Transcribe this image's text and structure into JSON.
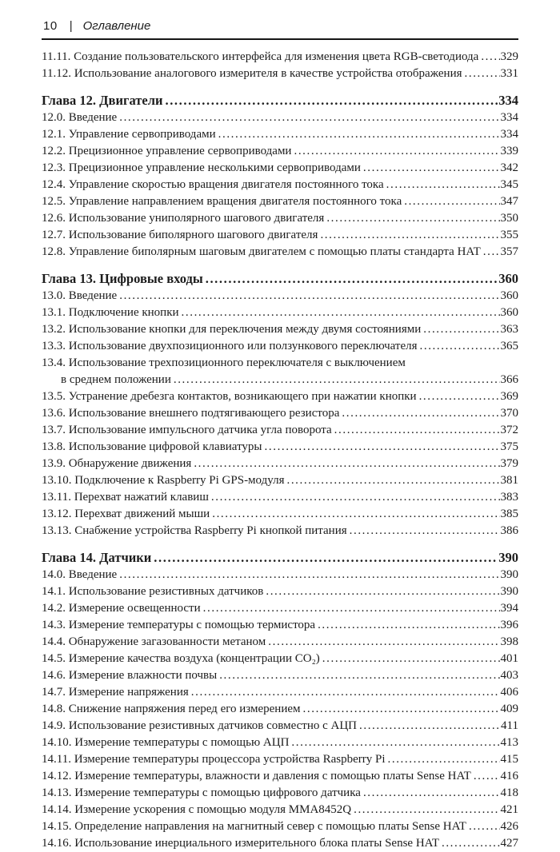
{
  "header": {
    "page_number": "10",
    "separator": "|",
    "title": "Оглавление"
  },
  "toc": {
    "sections": [
      {
        "entries": [
          {
            "label": "11.11. Создание пользовательского интерфейса для изменения цвета RGB-светодиода",
            "page": "329"
          },
          {
            "label": "11.12. Использование аналогового измерителя в качестве устройства отображения",
            "page": "331"
          }
        ]
      },
      {
        "heading": {
          "label": "Глава 12. Двигатели",
          "page": "334"
        },
        "entries": [
          {
            "label": "12.0. Введение",
            "page": "334"
          },
          {
            "label": "12.1. Управление сервоприводами",
            "page": "334"
          },
          {
            "label": "12.2. Прецизионное управление сервоприводами",
            "page": "339"
          },
          {
            "label": "12.3. Прецизионное управление несколькими сервоприводами",
            "page": "342"
          },
          {
            "label": "12.4. Управление скоростью вращения двигателя постоянного тока",
            "page": "345"
          },
          {
            "label": "12.5. Управление направлением вращения двигателя постоянного тока",
            "page": "347"
          },
          {
            "label": "12.6. Использование униполярного шагового двигателя",
            "page": "350"
          },
          {
            "label": "12.7. Использование биполярного шагового двигателя",
            "page": "355"
          },
          {
            "label": "12.8. Управление биполярным шаговым двигателем с помощью платы стандарта HAT",
            "page": "357"
          }
        ]
      },
      {
        "heading": {
          "label": "Глава 13. Цифровые входы",
          "page": "360"
        },
        "entries": [
          {
            "label": "13.0. Введение",
            "page": "360"
          },
          {
            "label": "13.1. Подключение кнопки",
            "page": "360"
          },
          {
            "label": "13.2. Использование кнопки для переключения между двумя состояниями",
            "page": "363"
          },
          {
            "label": "13.3. Использование двухпозиционного или ползункового переключателя",
            "page": "365"
          },
          {
            "label": "13.4. Использование трехпозиционного переключателя с выключением",
            "cont": "в среднем положении",
            "page": "366"
          },
          {
            "label": "13.5. Устранение дребезга контактов, возникающего при нажатии кнопки",
            "page": "369"
          },
          {
            "label": "13.6. Использование внешнего подтягивающего резистора",
            "page": "370"
          },
          {
            "label": "13.7. Использование импульсного датчика угла поворота",
            "page": "372"
          },
          {
            "label": "13.8. Использование цифровой клавиатуры",
            "page": "375"
          },
          {
            "label": "13.9. Обнаружение движения",
            "page": "379"
          },
          {
            "label": "13.10. Подключение к Raspberry Pi GPS-модуля",
            "page": "381"
          },
          {
            "label": "13.11. Перехват нажатий клавиш",
            "page": "383"
          },
          {
            "label": "13.12. Перехват движений мыши",
            "page": "385"
          },
          {
            "label": "13.13. Снабжение устройства Raspberry Pi кнопкой питания",
            "page": "386"
          }
        ]
      },
      {
        "heading": {
          "label": "Глава 14. Датчики",
          "page": "390"
        },
        "entries": [
          {
            "label": "14.0. Введение",
            "page": "390"
          },
          {
            "label": "14.1. Использование резистивных датчиков",
            "page": "390"
          },
          {
            "label": "14.2. Измерение освещенности",
            "page": "394"
          },
          {
            "label": "14.3. Измерение температуры с помощью термистора",
            "page": "396"
          },
          {
            "label": "14.4. Обнаружение загазованности метаном",
            "page": "398"
          },
          {
            "label": "14.5. Измерение качества воздуха (концентрации CO₂)",
            "page": "401"
          },
          {
            "label": "14.6. Измерение влажности почвы",
            "page": "403"
          },
          {
            "label": "14.7. Измерение напряжения",
            "page": "406"
          },
          {
            "label": "14.8. Снижение напряжения перед его измерением",
            "page": "409"
          },
          {
            "label": "14.9. Использование резистивных датчиков совместно с АЦП",
            "page": "411"
          },
          {
            "label": "14.10. Измерение температуры с помощью АЦП",
            "page": "413"
          },
          {
            "label": "14.11. Измерение температуры процессора устройства Raspberry Pi",
            "page": "415"
          },
          {
            "label": "14.12. Измерение температуры, влажности и давления с помощью платы Sense HAT",
            "page": "416"
          },
          {
            "label": "14.13. Измерение температуры с помощью цифрового датчика",
            "page": "418"
          },
          {
            "label": "14.14. Измерение ускорения с помощью модуля MMA8452Q",
            "page": "421"
          },
          {
            "label": "14.15. Определение направления на магнитный север с помощью платы Sense HAT",
            "page": "426"
          },
          {
            "label": "14.16. Использование инерциального измерительного блока платы Sense HAT",
            "page": "427"
          }
        ]
      }
    ]
  }
}
